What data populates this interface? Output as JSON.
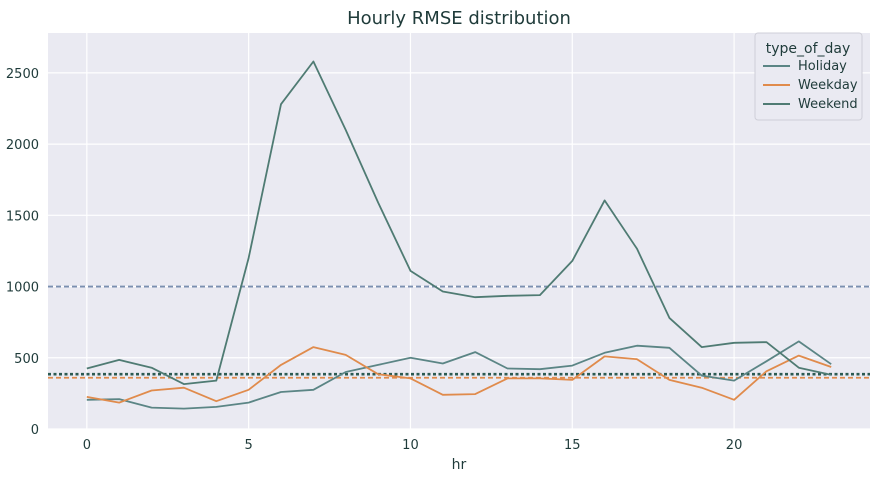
{
  "chart_data": {
    "type": "line",
    "title": "Hourly RMSE distribution",
    "xlabel": "hr",
    "ylabel": "",
    "xlim": [
      -1.2,
      24.2
    ],
    "ylim": [
      0,
      2780
    ],
    "xticks": [
      0,
      5,
      10,
      15,
      20
    ],
    "yticks": [
      0,
      500,
      1000,
      1500,
      2000,
      2500
    ],
    "grid": true,
    "legend": {
      "title": "type_of_day",
      "placement": "top-right"
    },
    "x": [
      0,
      1,
      2,
      3,
      4,
      5,
      6,
      7,
      8,
      9,
      10,
      11,
      12,
      13,
      14,
      15,
      16,
      17,
      18,
      19,
      20,
      21,
      22,
      23
    ],
    "series": [
      {
        "name": "Holiday",
        "color": "#5b8585",
        "values": [
          205,
          210,
          150,
          143,
          155,
          185,
          260,
          275,
          400,
          450,
          500,
          460,
          540,
          425,
          420,
          445,
          535,
          585,
          570,
          375,
          340,
          475,
          615,
          455
        ]
      },
      {
        "name": "Weekday",
        "color": "#e08b4c",
        "values": [
          225,
          185,
          270,
          290,
          195,
          275,
          450,
          575,
          520,
          385,
          355,
          240,
          245,
          355,
          355,
          345,
          510,
          490,
          345,
          290,
          205,
          405,
          515,
          435
        ]
      },
      {
        "name": "Weekend",
        "color": "#4f7b73",
        "values": [
          425,
          485,
          430,
          315,
          340,
          1200,
          2280,
          2580,
          2100,
          1590,
          1110,
          965,
          925,
          935,
          940,
          1180,
          1605,
          1265,
          780,
          575,
          605,
          610,
          430,
          380
        ]
      }
    ],
    "reference_lines": [
      {
        "y": 1000,
        "color": "#7a8fb0",
        "style": "dashed"
      },
      {
        "y": 385,
        "color": "#2c5a52",
        "style": "dotted"
      },
      {
        "y": 360,
        "color": "#e08b4c",
        "style": "dashed"
      }
    ]
  }
}
